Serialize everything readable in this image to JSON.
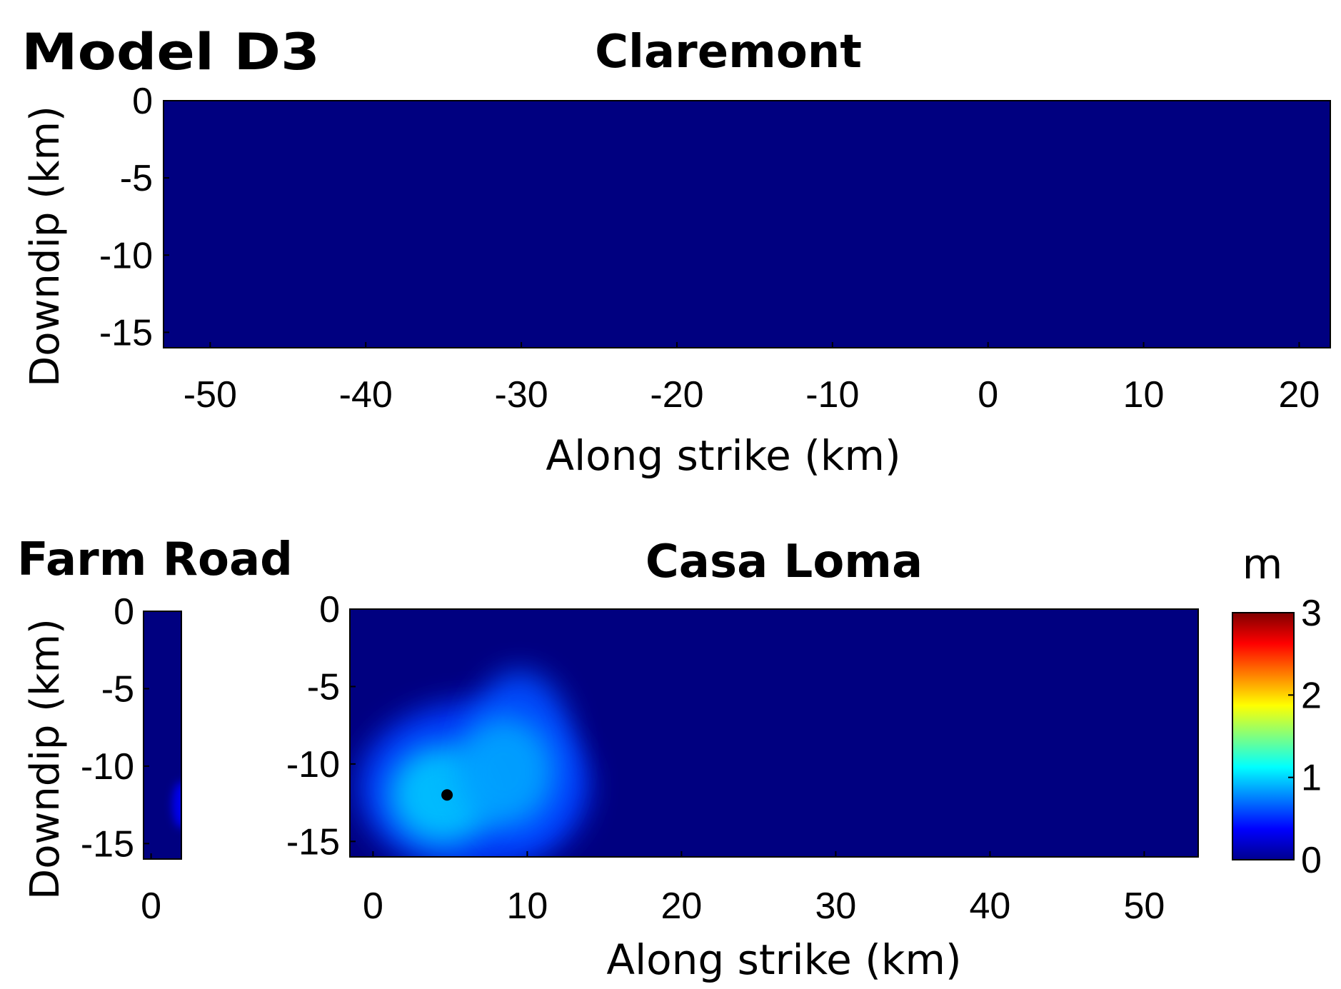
{
  "figure": {
    "model_label": "Model D3",
    "colorbar": {
      "unit": "m",
      "min": 0,
      "max": 3,
      "ticks": [
        "0",
        "1",
        "2",
        "3"
      ],
      "colormap": "jet"
    }
  },
  "chart_data": [
    {
      "type": "heatmap",
      "title": "Claremont",
      "xlabel": "Along strike (km)",
      "ylabel": "Downdip (km)",
      "xlim": [
        -53,
        22
      ],
      "ylim": [
        -16,
        0
      ],
      "x_ticks": [
        -50,
        -40,
        -30,
        -20,
        -10,
        0,
        10,
        20
      ],
      "y_ticks": [
        0,
        -5,
        -10,
        -15
      ],
      "uniform_value": 0,
      "patches": [],
      "hypocenter": null
    },
    {
      "type": "heatmap",
      "title": "Farm Road",
      "xlabel": "",
      "ylabel": "Downdip (km)",
      "xlim": [
        -0.5,
        2
      ],
      "ylim": [
        -16,
        0
      ],
      "x_ticks": [
        0
      ],
      "y_ticks": [
        0,
        -5,
        -10,
        -15
      ],
      "uniform_value": 0,
      "patches": [
        {
          "x": 2,
          "y": -12.5,
          "rx": 0.6,
          "ry": 1.5,
          "value": 0.35
        }
      ],
      "hypocenter": null
    },
    {
      "type": "heatmap",
      "title": "Casa Loma",
      "xlabel": "Along strike (km)",
      "ylabel": "",
      "xlim": [
        -1.5,
        53.5
      ],
      "ylim": [
        -16,
        0
      ],
      "x_ticks": [
        0,
        10,
        20,
        30,
        40,
        50
      ],
      "y_ticks": [
        0,
        -5,
        -10,
        -15
      ],
      "uniform_value": 0,
      "patches": [
        {
          "x": 6.5,
          "y": -11.5,
          "rx": 7.5,
          "ry": 5.5,
          "value": 0.55
        },
        {
          "x": 9.5,
          "y": -9.5,
          "rx": 3.5,
          "ry": 5.5,
          "value": 0.6
        },
        {
          "x": 4.5,
          "y": -12,
          "rx": 3.5,
          "ry": 3.2,
          "value": 0.95
        },
        {
          "x": 8.5,
          "y": -10.5,
          "rx": 3.2,
          "ry": 3.5,
          "value": 0.85
        }
      ],
      "hypocenter": {
        "x": 4.8,
        "y": -12
      }
    }
  ]
}
